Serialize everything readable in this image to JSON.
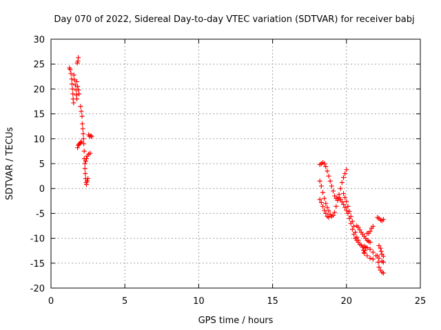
{
  "chart_data": {
    "type": "scatter",
    "title": "Day 070 of 2022, Sidereal Day-to-day VTEC variation (SDTVAR) for receiver babj",
    "xlabel": "GPS time / hours",
    "ylabel": "SDTVAR / TECUs",
    "xlim": [
      0,
      25
    ],
    "ylim": [
      -20,
      30
    ],
    "xticks": [
      0,
      5,
      10,
      15,
      20,
      25
    ],
    "yticks": [
      -20,
      -15,
      -10,
      -5,
      0,
      5,
      10,
      15,
      20,
      25,
      30
    ],
    "grid": true,
    "marker": "+",
    "color": "#ff0000",
    "series": [
      {
        "name": "SDTVAR",
        "points": [
          [
            1.25,
            24.2
          ],
          [
            1.3,
            23.9
          ],
          [
            1.35,
            23.1
          ],
          [
            1.4,
            22.0
          ],
          [
            1.42,
            21.0
          ],
          [
            1.45,
            20.0
          ],
          [
            1.48,
            19.0
          ],
          [
            1.5,
            18.0
          ],
          [
            1.53,
            17.2
          ],
          [
            1.55,
            22.8
          ],
          [
            1.6,
            21.8
          ],
          [
            1.65,
            20.8
          ],
          [
            1.7,
            19.8
          ],
          [
            1.72,
            18.8
          ],
          [
            1.75,
            18.0
          ],
          [
            1.75,
            21.5
          ],
          [
            1.8,
            20.5
          ],
          [
            1.85,
            19.8
          ],
          [
            1.9,
            19.0
          ],
          [
            1.78,
            25.2
          ],
          [
            1.82,
            25.6
          ],
          [
            1.85,
            26.3
          ],
          [
            1.8,
            8.2
          ],
          [
            1.85,
            8.7
          ],
          [
            1.9,
            8.9
          ],
          [
            1.95,
            9.0
          ],
          [
            2.0,
            9.2
          ],
          [
            2.05,
            9.4
          ],
          [
            2.0,
            16.5
          ],
          [
            2.05,
            15.5
          ],
          [
            2.1,
            14.5
          ],
          [
            2.12,
            13.0
          ],
          [
            2.15,
            12.0
          ],
          [
            2.18,
            11.0
          ],
          [
            2.2,
            10.0
          ],
          [
            2.22,
            9.0
          ],
          [
            2.25,
            7.5
          ],
          [
            2.25,
            6.0
          ],
          [
            2.3,
            5.0
          ],
          [
            2.3,
            4.0
          ],
          [
            2.32,
            3.0
          ],
          [
            2.35,
            2.0
          ],
          [
            2.38,
            1.2
          ],
          [
            2.4,
            0.8
          ],
          [
            2.45,
            1.5
          ],
          [
            2.5,
            2.0
          ],
          [
            2.35,
            5.5
          ],
          [
            2.4,
            6.0
          ],
          [
            2.45,
            6.5
          ],
          [
            2.55,
            6.9
          ],
          [
            2.65,
            7.1
          ],
          [
            2.55,
            10.8
          ],
          [
            2.6,
            10.5
          ],
          [
            2.7,
            10.6
          ],
          [
            2.75,
            10.4
          ],
          [
            18.2,
            4.8
          ],
          [
            18.3,
            5.0
          ],
          [
            18.4,
            5.2
          ],
          [
            18.5,
            5.0
          ],
          [
            18.6,
            4.4
          ],
          [
            18.7,
            3.5
          ],
          [
            18.8,
            2.5
          ],
          [
            18.9,
            1.5
          ],
          [
            19.0,
            0.5
          ],
          [
            19.1,
            -0.5
          ],
          [
            19.2,
            -1.5
          ],
          [
            19.3,
            -2.0
          ],
          [
            19.4,
            -2.0
          ],
          [
            19.5,
            -1.8
          ],
          [
            19.6,
            -2.2
          ],
          [
            19.7,
            -2.7
          ],
          [
            19.8,
            -3.2
          ],
          [
            19.9,
            -3.8
          ],
          [
            20.0,
            -4.4
          ],
          [
            20.1,
            -5.0
          ],
          [
            20.2,
            -6.0
          ],
          [
            20.3,
            -7.0
          ],
          [
            20.4,
            -8.2
          ],
          [
            20.5,
            -9.2
          ],
          [
            20.6,
            -10.0
          ],
          [
            20.7,
            -10.4
          ],
          [
            20.8,
            -10.8
          ],
          [
            20.9,
            -11.2
          ],
          [
            21.0,
            -11.4
          ],
          [
            21.2,
            -11.6
          ],
          [
            21.4,
            -11.9
          ],
          [
            21.6,
            -12.2
          ],
          [
            21.8,
            -12.8
          ],
          [
            22.0,
            -13.5
          ],
          [
            22.2,
            -14.0
          ],
          [
            22.4,
            -14.6
          ],
          [
            22.5,
            -14.8
          ],
          [
            18.2,
            1.5
          ],
          [
            18.3,
            0.5
          ],
          [
            18.4,
            -0.8
          ],
          [
            18.5,
            -2.0
          ],
          [
            18.6,
            -3.0
          ],
          [
            18.7,
            -3.8
          ],
          [
            18.8,
            -4.5
          ],
          [
            18.9,
            -5.2
          ],
          [
            19.0,
            -5.6
          ],
          [
            19.1,
            -5.4
          ],
          [
            19.2,
            -4.8
          ],
          [
            19.3,
            -3.6
          ],
          [
            19.4,
            -2.4
          ],
          [
            19.5,
            -1.2
          ],
          [
            19.6,
            0.0
          ],
          [
            19.7,
            1.2
          ],
          [
            19.8,
            2.2
          ],
          [
            19.9,
            3.0
          ],
          [
            20.0,
            3.8
          ],
          [
            18.2,
            -2.2
          ],
          [
            18.3,
            -2.8
          ],
          [
            18.4,
            -3.6
          ],
          [
            18.5,
            -4.4
          ],
          [
            18.6,
            -5.0
          ],
          [
            18.7,
            -5.6
          ],
          [
            18.8,
            -5.8
          ],
          [
            19.8,
            -1.0
          ],
          [
            19.9,
            -1.8
          ],
          [
            20.0,
            -2.6
          ],
          [
            20.1,
            -3.6
          ],
          [
            20.2,
            -4.6
          ],
          [
            20.3,
            -5.6
          ],
          [
            20.4,
            -6.6
          ],
          [
            20.5,
            -7.6
          ],
          [
            20.6,
            -8.8
          ],
          [
            20.7,
            -9.8
          ],
          [
            20.8,
            -10.4
          ],
          [
            20.7,
            -7.5
          ],
          [
            20.8,
            -7.8
          ],
          [
            20.9,
            -8.3
          ],
          [
            21.0,
            -8.8
          ],
          [
            21.1,
            -9.2
          ],
          [
            21.2,
            -9.6
          ],
          [
            21.3,
            -10.0
          ],
          [
            21.4,
            -10.4
          ],
          [
            21.5,
            -10.6
          ],
          [
            21.6,
            -10.8
          ],
          [
            21.1,
            -11.8
          ],
          [
            21.15,
            -12.4
          ],
          [
            21.2,
            -12.9
          ],
          [
            21.25,
            -12.5
          ],
          [
            21.3,
            -11.8
          ],
          [
            21.4,
            -9.0
          ],
          [
            21.5,
            -9.0
          ],
          [
            21.6,
            -8.6
          ],
          [
            21.7,
            -8.0
          ],
          [
            21.8,
            -7.6
          ],
          [
            22.1,
            -5.8
          ],
          [
            22.2,
            -6.0
          ],
          [
            22.3,
            -6.3
          ],
          [
            22.4,
            -6.5
          ],
          [
            22.5,
            -6.2
          ],
          [
            22.2,
            -11.5
          ],
          [
            22.3,
            -12.0
          ],
          [
            22.35,
            -12.6
          ],
          [
            22.4,
            -13.2
          ],
          [
            22.5,
            -13.6
          ],
          [
            22.1,
            -13.5
          ],
          [
            22.15,
            -14.8
          ],
          [
            22.2,
            -15.8
          ],
          [
            22.3,
            -16.4
          ],
          [
            22.4,
            -16.8
          ],
          [
            22.5,
            -17.0
          ],
          [
            21.2,
            -13.0
          ],
          [
            21.4,
            -13.5
          ],
          [
            21.6,
            -14.0
          ],
          [
            21.8,
            -14.2
          ]
        ]
      }
    ]
  }
}
